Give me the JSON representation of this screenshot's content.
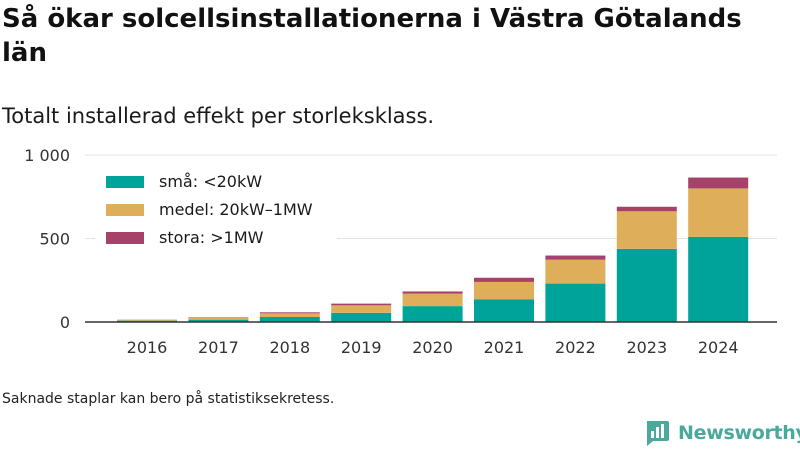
{
  "title": "Så ökar solcellsinstallationerna i Västra Götalands län",
  "subtitle": "Totalt installerad effekt per storleksklass.",
  "note": "Saknade staplar kan bero på statistiksekretess.",
  "brand": {
    "name": "Newsworthy",
    "color": "#4aa89c"
  },
  "chart_data": {
    "type": "bar",
    "stacked": true,
    "categories": [
      "2016",
      "2017",
      "2018",
      "2019",
      "2020",
      "2021",
      "2022",
      "2023",
      "2024"
    ],
    "series": [
      {
        "name": "små: <20kW",
        "color": "#00a39a",
        "values": [
          8,
          14,
          30,
          55,
          95,
          135,
          230,
          438,
          510
        ]
      },
      {
        "name": "medel: 20kW–1MW",
        "color": "#dfae5a",
        "values": [
          5,
          10,
          22,
          45,
          75,
          105,
          143,
          225,
          290
        ]
      },
      {
        "name": "stora: >1MW",
        "color": "#a6416a",
        "values": [
          1,
          3,
          6,
          10,
          13,
          25,
          25,
          27,
          65
        ]
      }
    ],
    "yticks": [
      {
        "value": 0,
        "label": "0"
      },
      {
        "value": 500,
        "label": "500"
      },
      {
        "value": 1000,
        "label": "1 000"
      }
    ],
    "ylim": [
      0,
      1000
    ],
    "grid": true,
    "legend_position": "top-left"
  }
}
